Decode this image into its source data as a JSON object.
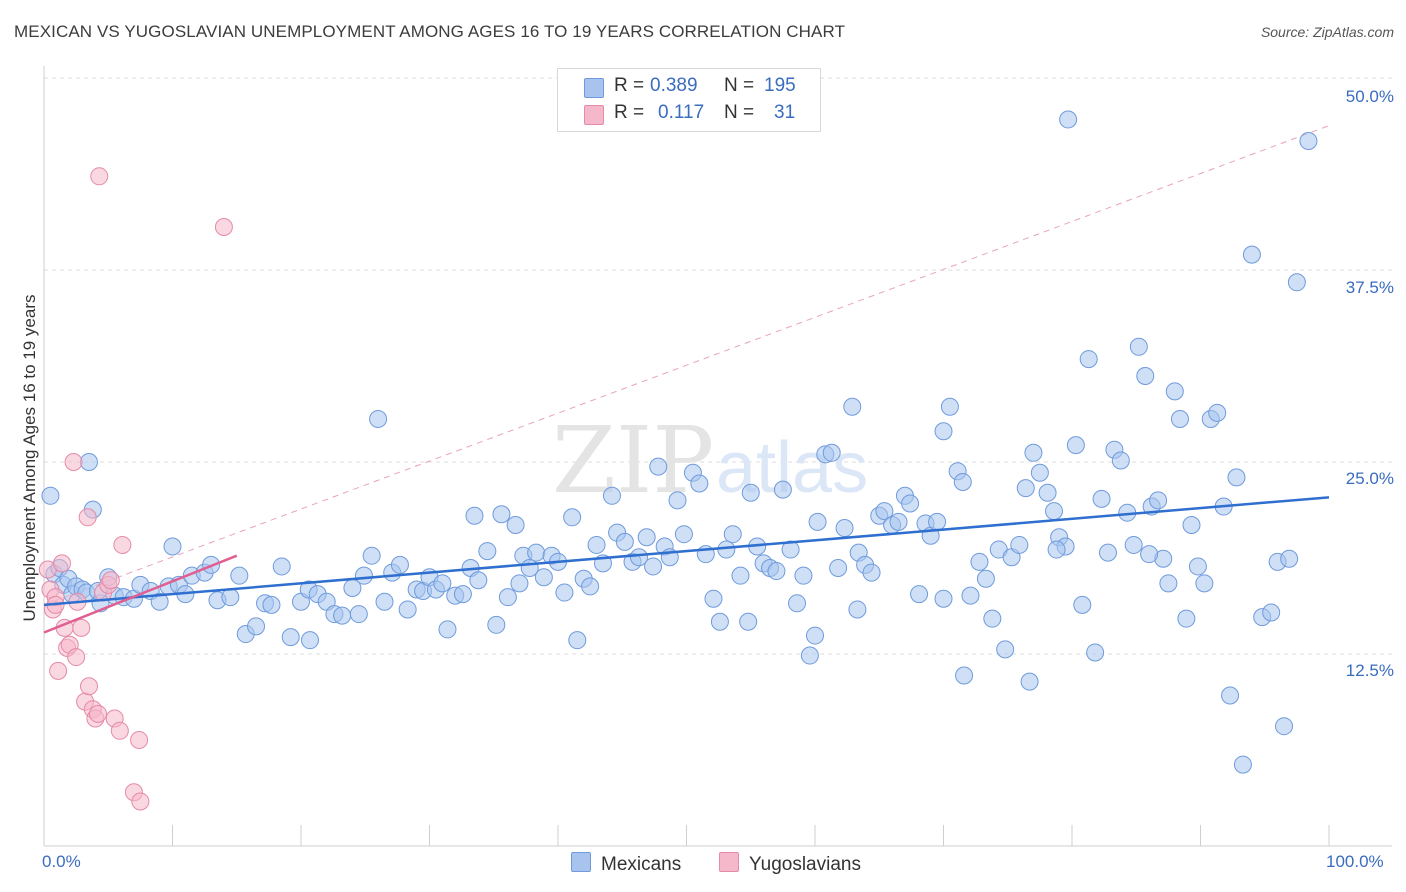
{
  "title": "MEXICAN VS YUGOSLAVIAN UNEMPLOYMENT AMONG AGES 16 TO 19 YEARS CORRELATION CHART",
  "source": "Source: ZipAtlas.com",
  "watermark": {
    "zip": "ZIP",
    "atlas": "atlas"
  },
  "legend_top": [
    {
      "r_label": "R =",
      "r_value": "0.389",
      "n_label": "N =",
      "n_value": "195",
      "color": "#a8c4ee"
    },
    {
      "r_label": "R =",
      "r_value": "0.117",
      "n_label": "N =",
      "n_value": "31",
      "color": "#f5b8cb"
    }
  ],
  "colors": {
    "blue_fill": "#a8c4ee",
    "blue_stroke": "#6f9bdc",
    "blue_line": "#2f6fcf",
    "pink_fill": "#f5b8cb",
    "pink_stroke": "#e58aa8",
    "pink_line": "#e05f90",
    "accent_text": "#3a6cc0",
    "grid": "#dddddd"
  },
  "chart_data": {
    "type": "scatter",
    "title": "MEXICAN VS YUGOSLAVIAN UNEMPLOYMENT AMONG AGES 16 TO 19 YEARS CORRELATION CHART",
    "xlabel": "",
    "ylabel": "Unemployment Among Ages 16 to 19 years",
    "xlim": [
      0,
      100
    ],
    "ylim": [
      0,
      50
    ],
    "x_tick_labels": [
      "0.0%",
      "100.0%"
    ],
    "y_tick_labels": [
      "12.5%",
      "25.0%",
      "37.5%",
      "50.0%"
    ],
    "y_ticks": [
      12.5,
      25.0,
      37.5,
      50.0
    ],
    "legend": [
      "Mexicans",
      "Yugoslavians"
    ],
    "series": [
      {
        "name": "Mexicans",
        "r": 0.389,
        "n": 195,
        "trend": {
          "x": [
            0,
            100
          ],
          "y": [
            15.7,
            22.7
          ]
        },
        "points": [
          [
            0.5,
            22.8
          ],
          [
            0.8,
            17.7
          ],
          [
            1.2,
            18.1
          ],
          [
            1.5,
            17.0
          ],
          [
            1.9,
            17.4
          ],
          [
            2.2,
            16.4
          ],
          [
            2.5,
            16.9
          ],
          [
            3.0,
            16.7
          ],
          [
            3.3,
            16.5
          ],
          [
            3.8,
            21.9
          ],
          [
            4.4,
            15.8
          ],
          [
            5.0,
            17.5
          ],
          [
            5.5,
            16.3
          ],
          [
            6.2,
            16.2
          ],
          [
            7.0,
            16.1
          ],
          [
            7.5,
            17.0
          ],
          [
            8.3,
            16.6
          ],
          [
            9.0,
            15.9
          ],
          [
            9.7,
            16.9
          ],
          [
            10.5,
            17.0
          ],
          [
            11.0,
            16.4
          ],
          [
            11.5,
            17.6
          ],
          [
            12.5,
            17.8
          ],
          [
            13.0,
            18.3
          ],
          [
            13.5,
            16.0
          ],
          [
            14.5,
            16.2
          ],
          [
            15.2,
            17.6
          ],
          [
            15.7,
            13.8
          ],
          [
            16.5,
            14.3
          ],
          [
            17.2,
            15.8
          ],
          [
            17.7,
            15.7
          ],
          [
            18.5,
            18.2
          ],
          [
            19.2,
            13.6
          ],
          [
            20.0,
            15.9
          ],
          [
            20.6,
            16.7
          ],
          [
            21.3,
            16.4
          ],
          [
            22.0,
            15.9
          ],
          [
            22.6,
            15.1
          ],
          [
            23.2,
            15.0
          ],
          [
            24.0,
            16.8
          ],
          [
            24.5,
            15.1
          ],
          [
            24.9,
            17.6
          ],
          [
            25.5,
            18.9
          ],
          [
            26.0,
            27.8
          ],
          [
            26.5,
            15.9
          ],
          [
            27.1,
            17.8
          ],
          [
            27.7,
            18.3
          ],
          [
            28.3,
            15.4
          ],
          [
            29.0,
            16.7
          ],
          [
            29.5,
            16.6
          ],
          [
            30.0,
            17.5
          ],
          [
            30.5,
            16.7
          ],
          [
            31.0,
            17.1
          ],
          [
            31.4,
            14.1
          ],
          [
            32.0,
            16.3
          ],
          [
            32.6,
            16.4
          ],
          [
            33.2,
            18.1
          ],
          [
            33.8,
            17.3
          ],
          [
            34.5,
            19.2
          ],
          [
            35.2,
            14.4
          ],
          [
            35.6,
            21.6
          ],
          [
            36.1,
            16.2
          ],
          [
            36.7,
            20.9
          ],
          [
            37.3,
            18.9
          ],
          [
            37.8,
            18.1
          ],
          [
            38.3,
            19.1
          ],
          [
            38.9,
            17.5
          ],
          [
            39.5,
            18.9
          ],
          [
            40.0,
            18.5
          ],
          [
            40.5,
            16.5
          ],
          [
            41.1,
            21.4
          ],
          [
            41.5,
            13.4
          ],
          [
            42.0,
            17.4
          ],
          [
            42.5,
            16.9
          ],
          [
            43.0,
            19.6
          ],
          [
            43.5,
            18.4
          ],
          [
            44.2,
            22.8
          ],
          [
            44.6,
            20.4
          ],
          [
            45.2,
            19.8
          ],
          [
            45.8,
            18.5
          ],
          [
            46.3,
            18.8
          ],
          [
            46.9,
            20.1
          ],
          [
            47.4,
            18.2
          ],
          [
            47.8,
            24.7
          ],
          [
            48.3,
            19.5
          ],
          [
            48.7,
            18.8
          ],
          [
            49.3,
            22.5
          ],
          [
            49.8,
            20.3
          ],
          [
            50.5,
            24.3
          ],
          [
            51.0,
            23.6
          ],
          [
            51.5,
            19.0
          ],
          [
            52.1,
            16.1
          ],
          [
            52.6,
            14.6
          ],
          [
            53.1,
            19.3
          ],
          [
            53.6,
            20.3
          ],
          [
            54.2,
            17.6
          ],
          [
            54.8,
            14.6
          ],
          [
            55.5,
            19.5
          ],
          [
            56.0,
            18.4
          ],
          [
            56.5,
            18.1
          ],
          [
            57.0,
            17.9
          ],
          [
            57.5,
            23.2
          ],
          [
            58.1,
            19.3
          ],
          [
            58.6,
            15.8
          ],
          [
            59.1,
            17.6
          ],
          [
            59.6,
            12.4
          ],
          [
            60.2,
            21.1
          ],
          [
            60.8,
            25.5
          ],
          [
            61.3,
            25.6
          ],
          [
            61.8,
            18.1
          ],
          [
            62.3,
            20.7
          ],
          [
            62.9,
            28.6
          ],
          [
            63.4,
            19.1
          ],
          [
            63.9,
            18.3
          ],
          [
            64.4,
            17.8
          ],
          [
            65.0,
            21.5
          ],
          [
            65.4,
            21.8
          ],
          [
            66.0,
            20.9
          ],
          [
            66.5,
            21.1
          ],
          [
            67.0,
            22.8
          ],
          [
            67.4,
            22.3
          ],
          [
            68.1,
            16.4
          ],
          [
            68.6,
            21.0
          ],
          [
            69.0,
            20.2
          ],
          [
            69.5,
            21.1
          ],
          [
            70.0,
            16.1
          ],
          [
            70.5,
            28.6
          ],
          [
            71.1,
            24.4
          ],
          [
            71.5,
            23.7
          ],
          [
            72.1,
            16.3
          ],
          [
            72.8,
            18.5
          ],
          [
            73.3,
            17.4
          ],
          [
            73.8,
            14.8
          ],
          [
            74.3,
            19.3
          ],
          [
            74.8,
            12.8
          ],
          [
            75.3,
            18.8
          ],
          [
            75.9,
            19.6
          ],
          [
            76.4,
            23.3
          ],
          [
            77.0,
            25.6
          ],
          [
            77.5,
            24.3
          ],
          [
            78.1,
            23.0
          ],
          [
            78.6,
            21.8
          ],
          [
            79.0,
            20.1
          ],
          [
            79.5,
            19.5
          ],
          [
            79.7,
            47.3
          ],
          [
            80.3,
            26.1
          ],
          [
            80.8,
            15.7
          ],
          [
            81.3,
            31.7
          ],
          [
            81.8,
            12.6
          ],
          [
            82.3,
            22.6
          ],
          [
            82.8,
            19.1
          ],
          [
            83.3,
            25.8
          ],
          [
            83.8,
            25.1
          ],
          [
            84.3,
            21.7
          ],
          [
            84.8,
            19.6
          ],
          [
            85.2,
            32.5
          ],
          [
            85.7,
            30.6
          ],
          [
            86.2,
            22.1
          ],
          [
            86.7,
            22.5
          ],
          [
            87.1,
            18.7
          ],
          [
            87.5,
            17.1
          ],
          [
            88.0,
            29.6
          ],
          [
            88.4,
            27.8
          ],
          [
            88.9,
            14.8
          ],
          [
            89.3,
            20.9
          ],
          [
            89.8,
            18.2
          ],
          [
            90.3,
            17.1
          ],
          [
            90.8,
            27.8
          ],
          [
            91.3,
            28.2
          ],
          [
            91.8,
            22.1
          ],
          [
            92.3,
            9.8
          ],
          [
            92.8,
            24.0
          ],
          [
            93.3,
            5.3
          ],
          [
            94.0,
            38.5
          ],
          [
            94.8,
            14.9
          ],
          [
            95.5,
            15.2
          ],
          [
            96.0,
            18.5
          ],
          [
            96.5,
            7.8
          ],
          [
            97.5,
            36.7
          ],
          [
            98.4,
            45.9
          ],
          [
            3.5,
            25.0
          ],
          [
            10.0,
            19.5
          ],
          [
            20.7,
            13.4
          ],
          [
            33.5,
            21.5
          ],
          [
            55.0,
            23.0
          ],
          [
            63.3,
            15.4
          ],
          [
            70.0,
            27.0
          ],
          [
            78.8,
            19.3
          ],
          [
            86.0,
            19.0
          ],
          [
            96.9,
            18.7
          ],
          [
            4.2,
            16.6
          ],
          [
            37.0,
            17.1
          ],
          [
            60.0,
            13.7
          ],
          [
            71.6,
            11.1
          ],
          [
            76.7,
            10.7
          ]
        ]
      },
      {
        "name": "Yugoslavians",
        "r": 0.117,
        "n": 31,
        "trend": {
          "x": [
            0,
            15
          ],
          "y": [
            13.9,
            18.9
          ]
        },
        "points": [
          [
            0.3,
            18.0
          ],
          [
            0.5,
            16.7
          ],
          [
            0.7,
            15.4
          ],
          [
            0.9,
            16.2
          ],
          [
            1.1,
            11.4
          ],
          [
            1.4,
            18.4
          ],
          [
            1.6,
            14.2
          ],
          [
            1.8,
            12.9
          ],
          [
            2.0,
            13.1
          ],
          [
            2.3,
            25.0
          ],
          [
            2.5,
            12.3
          ],
          [
            2.6,
            15.9
          ],
          [
            2.9,
            14.2
          ],
          [
            3.2,
            9.4
          ],
          [
            3.4,
            21.4
          ],
          [
            3.5,
            10.4
          ],
          [
            3.8,
            8.9
          ],
          [
            4.0,
            8.3
          ],
          [
            4.2,
            8.6
          ],
          [
            4.3,
            43.6
          ],
          [
            4.6,
            16.5
          ],
          [
            5.0,
            17.0
          ],
          [
            5.2,
            17.3
          ],
          [
            5.5,
            8.3
          ],
          [
            5.9,
            7.5
          ],
          [
            6.1,
            19.6
          ],
          [
            7.0,
            3.5
          ],
          [
            7.4,
            6.9
          ],
          [
            7.5,
            2.9
          ],
          [
            14.0,
            40.3
          ],
          [
            0.9,
            15.7
          ]
        ]
      }
    ],
    "reference_line": {
      "style": "dashed",
      "x": [
        0,
        100
      ],
      "y": [
        15.7,
        46.9
      ]
    }
  }
}
